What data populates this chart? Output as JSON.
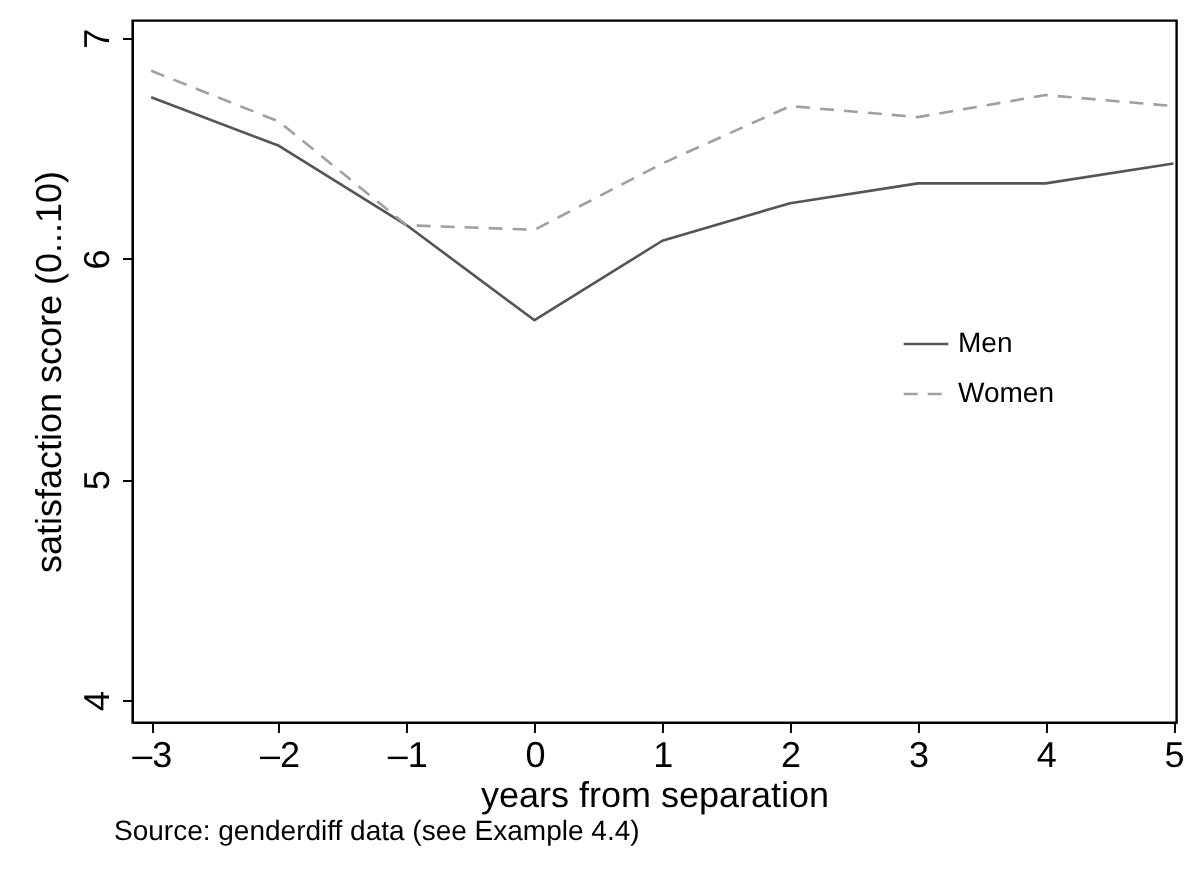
{
  "chart_data": {
    "type": "line",
    "xlabel": "years from separation",
    "ylabel": "satisfaction score (0...10)",
    "x": [
      -3,
      -2,
      -1,
      0,
      1,
      2,
      3,
      4,
      5
    ],
    "series": [
      {
        "name": "Men",
        "color": "#555555",
        "line_style": "solid",
        "values": [
          6.73,
          6.51,
          6.15,
          5.72,
          6.08,
          6.25,
          6.34,
          6.34,
          6.43
        ]
      },
      {
        "name": "Women",
        "color": "#a0a0a0",
        "line_style": "dashed",
        "values": [
          6.85,
          6.62,
          6.15,
          6.13,
          6.43,
          6.69,
          6.64,
          6.74,
          6.69
        ]
      }
    ],
    "xlim": [
      -3.15,
      5.02
    ],
    "ylim": [
      3.9,
      7.08
    ],
    "xticks": [
      {
        "value": -3,
        "label": "–3"
      },
      {
        "value": -2,
        "label": "–2"
      },
      {
        "value": -1,
        "label": "–1"
      },
      0,
      1,
      2,
      3,
      4,
      5
    ],
    "yticks": [
      4,
      5,
      6,
      7
    ],
    "grid": false,
    "legend": "right",
    "marker": "none",
    "annotations": [
      "Source: genderdiff data (see Example 4.4)"
    ]
  }
}
